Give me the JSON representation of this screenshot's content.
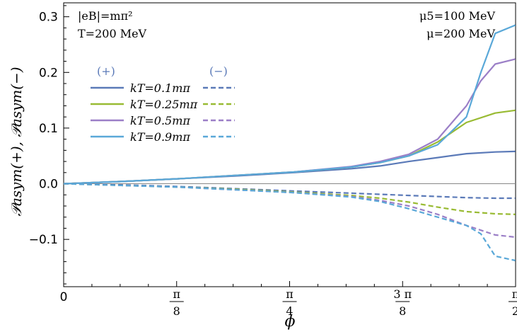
{
  "chart_data": {
    "type": "line",
    "xlabel": "ϕ",
    "ylabel": "𝒫asym(+), 𝒫asym(−)",
    "xlim": [
      0,
      1.5708
    ],
    "ylim": [
      -0.185,
      0.325
    ],
    "x_ticks": [
      {
        "value": 0,
        "label": "0"
      },
      {
        "value": 0.3927,
        "num": "π",
        "den": "8"
      },
      {
        "value": 0.7854,
        "num": "π",
        "den": "4"
      },
      {
        "value": 1.1781,
        "num": "3 π",
        "den": "8"
      },
      {
        "value": 1.5708,
        "num": "π",
        "den": "2"
      }
    ],
    "y_ticks": [
      {
        "value": -0.1,
        "label": "−0.1"
      },
      {
        "value": 0.0,
        "label": "0.0"
      },
      {
        "value": 0.1,
        "label": "0.1"
      },
      {
        "value": 0.2,
        "label": "0.2"
      },
      {
        "value": 0.3,
        "label": "0.3"
      }
    ],
    "annotations": {
      "top_left_1": "|eB|=mπ²",
      "top_left_2": "T=200 MeV",
      "top_right_1": "μ5=100 MeV",
      "top_right_2": "μ=200 MeV"
    },
    "legend": {
      "plus_header": "(+)",
      "minus_header": "(−)",
      "entries": [
        "kT=0.1mπ",
        "kT=0.25mπ",
        "kT=0.5mπ",
        "kT=0.9mπ"
      ]
    },
    "series": [
      {
        "name": "kT=0.1mπ (+)",
        "color": "#5b7ab8",
        "dash": false,
        "x": [
          0,
          0.2,
          0.4,
          0.6,
          0.8,
          1.0,
          1.1,
          1.2,
          1.3,
          1.4,
          1.5,
          1.57
        ],
        "y": [
          0,
          0.004,
          0.009,
          0.014,
          0.02,
          0.027,
          0.032,
          0.04,
          0.047,
          0.054,
          0.057,
          0.058
        ]
      },
      {
        "name": "kT=0.25mπ (+)",
        "color": "#99bb33",
        "dash": false,
        "x": [
          0,
          0.2,
          0.4,
          0.6,
          0.8,
          1.0,
          1.1,
          1.2,
          1.3,
          1.4,
          1.5,
          1.57
        ],
        "y": [
          0,
          0.004,
          0.009,
          0.015,
          0.021,
          0.03,
          0.038,
          0.05,
          0.075,
          0.11,
          0.127,
          0.132
        ]
      },
      {
        "name": "kT=0.5mπ (+)",
        "color": "#9b7fc7",
        "dash": false,
        "x": [
          0,
          0.2,
          0.4,
          0.6,
          0.8,
          1.0,
          1.1,
          1.2,
          1.3,
          1.4,
          1.45,
          1.5,
          1.57
        ],
        "y": [
          0,
          0.004,
          0.009,
          0.015,
          0.021,
          0.031,
          0.04,
          0.053,
          0.08,
          0.14,
          0.185,
          0.215,
          0.224
        ]
      },
      {
        "name": "kT=0.9mπ (+)",
        "color": "#5aa8d8",
        "dash": false,
        "x": [
          0,
          0.2,
          0.4,
          0.6,
          0.8,
          1.0,
          1.1,
          1.2,
          1.3,
          1.4,
          1.45,
          1.5,
          1.57
        ],
        "y": [
          0,
          0.004,
          0.009,
          0.015,
          0.021,
          0.03,
          0.038,
          0.05,
          0.07,
          0.12,
          0.2,
          0.27,
          0.285
        ]
      },
      {
        "name": "kT=0.1mπ (−)",
        "color": "#5b7ab8",
        "dash": true,
        "x": [
          0,
          0.2,
          0.4,
          0.6,
          0.8,
          1.0,
          1.1,
          1.2,
          1.3,
          1.4,
          1.5,
          1.57
        ],
        "y": [
          0,
          -0.002,
          -0.005,
          -0.009,
          -0.013,
          -0.017,
          -0.019,
          -0.021,
          -0.023,
          -0.025,
          -0.026,
          -0.026
        ]
      },
      {
        "name": "kT=0.25mπ (−)",
        "color": "#99bb33",
        "dash": true,
        "x": [
          0,
          0.2,
          0.4,
          0.6,
          0.8,
          1.0,
          1.1,
          1.2,
          1.3,
          1.4,
          1.5,
          1.57
        ],
        "y": [
          0,
          -0.003,
          -0.006,
          -0.01,
          -0.015,
          -0.021,
          -0.026,
          -0.033,
          -0.042,
          -0.05,
          -0.054,
          -0.055
        ]
      },
      {
        "name": "kT=0.5mπ (−)",
        "color": "#9b7fc7",
        "dash": true,
        "x": [
          0,
          0.2,
          0.4,
          0.6,
          0.8,
          1.0,
          1.1,
          1.2,
          1.3,
          1.4,
          1.5,
          1.57
        ],
        "y": [
          0,
          -0.003,
          -0.006,
          -0.011,
          -0.016,
          -0.023,
          -0.03,
          -0.04,
          -0.055,
          -0.075,
          -0.092,
          -0.096
        ]
      },
      {
        "name": "kT=0.9mπ (−)",
        "color": "#5aa8d8",
        "dash": true,
        "x": [
          0,
          0.2,
          0.4,
          0.6,
          0.8,
          1.0,
          1.1,
          1.2,
          1.3,
          1.4,
          1.45,
          1.5,
          1.57
        ],
        "y": [
          0,
          -0.003,
          -0.006,
          -0.011,
          -0.016,
          -0.024,
          -0.032,
          -0.045,
          -0.06,
          -0.075,
          -0.09,
          -0.13,
          -0.138
        ]
      }
    ]
  }
}
